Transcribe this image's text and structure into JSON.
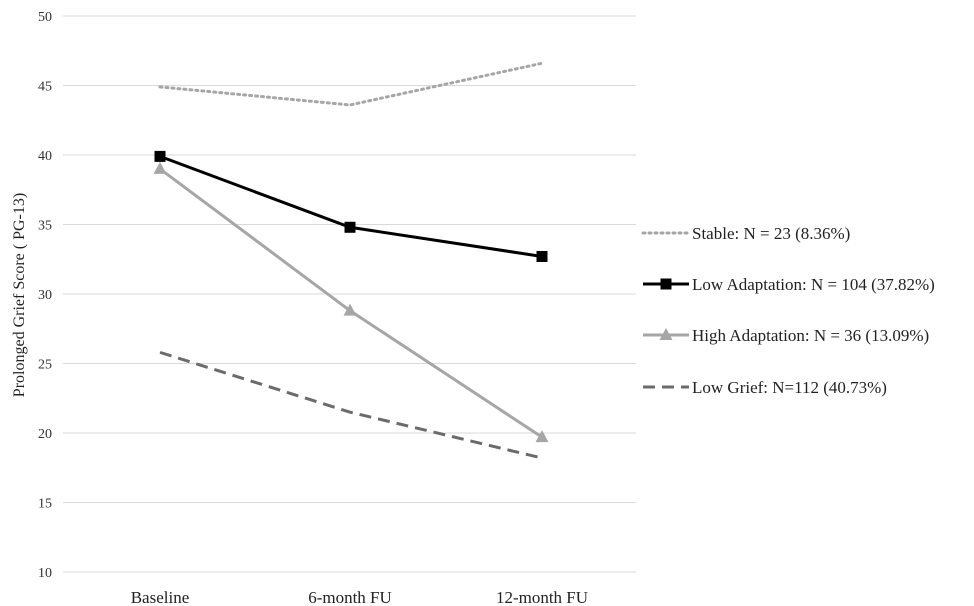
{
  "chart_data": {
    "type": "line",
    "title": "",
    "xlabel": "",
    "ylabel": "Prolonged Grief Score ( PG-13)",
    "categories": [
      "Baseline",
      "6-month FU",
      "12-month FU"
    ],
    "ylim": [
      10,
      50
    ],
    "yticks": [
      10,
      15,
      20,
      25,
      30,
      35,
      40,
      45,
      50
    ],
    "grid": true,
    "legend_position": "right",
    "series": [
      {
        "name": "Stable: N = 23 (8.36%)",
        "values": [
          44.9,
          43.6,
          46.6
        ],
        "color": "#a6a6a6",
        "line_style": "dotted",
        "marker": "none"
      },
      {
        "name": "Low Adaptation: N = 104 (37.82%)",
        "values": [
          39.9,
          34.8,
          32.7
        ],
        "color": "#000000",
        "line_style": "solid",
        "marker": "square"
      },
      {
        "name": "High Adaptation: N = 36 (13.09%)",
        "values": [
          39.0,
          28.8,
          19.7
        ],
        "color": "#a6a6a6",
        "line_style": "solid",
        "marker": "triangle"
      },
      {
        "name": "Low Grief: N=112 (40.73%)",
        "values": [
          25.8,
          21.5,
          18.2
        ],
        "color": "#6b6b6b",
        "line_style": "dashed",
        "marker": "none"
      }
    ]
  }
}
